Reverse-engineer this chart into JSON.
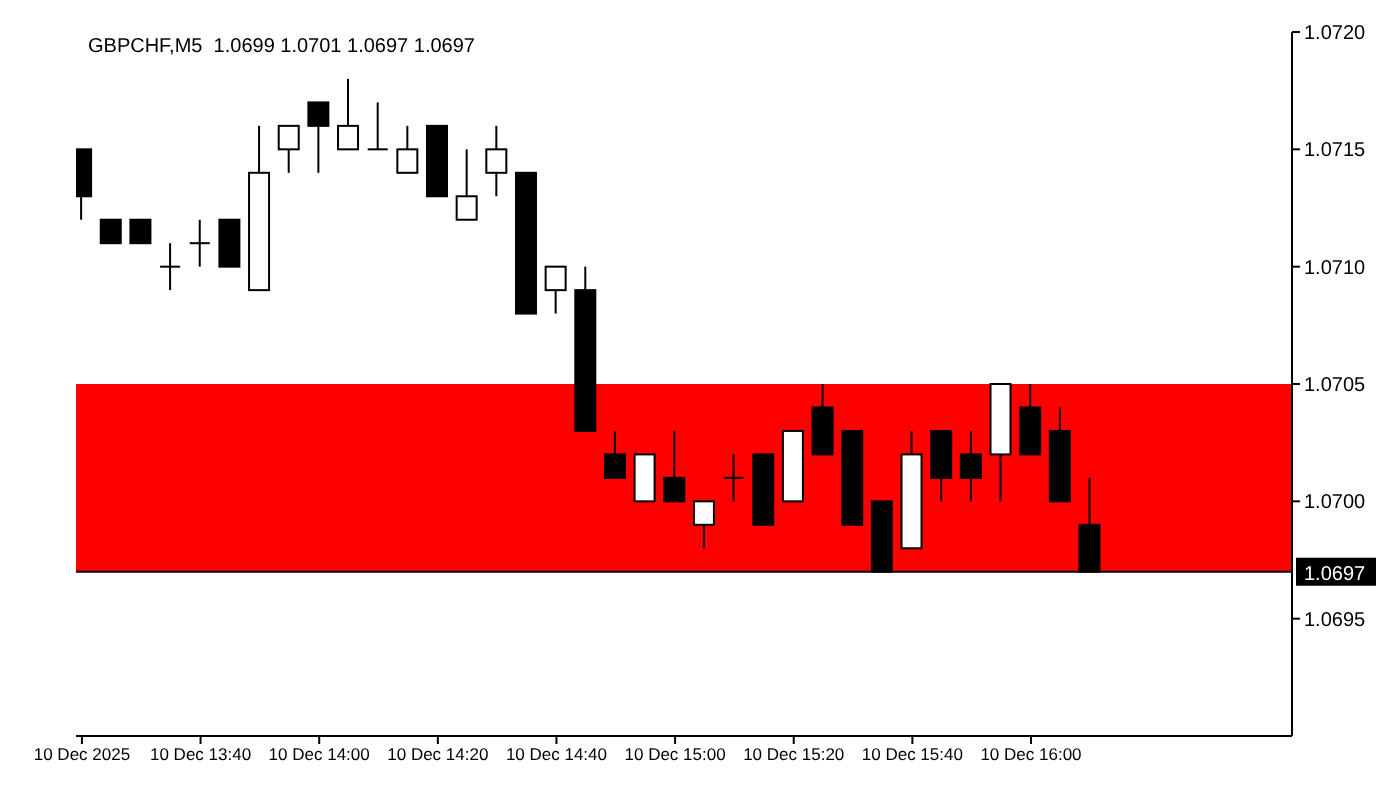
{
  "chart_data": {
    "type": "candlestick",
    "title": "GBPCHF,M5  1.0699 1.0701 1.0697 1.0697",
    "color": "#000000",
    "x": [
      "2025-12-10T13:20",
      "2025-12-10T13:25",
      "2025-12-10T13:30",
      "2025-12-10T13:35",
      "2025-12-10T13:40",
      "2025-12-10T13:45",
      "2025-12-10T13:50",
      "2025-12-10T13:55",
      "2025-12-10T14:00",
      "2025-12-10T14:05",
      "2025-12-10T14:10",
      "2025-12-10T14:15",
      "2025-12-10T14:20",
      "2025-12-10T14:25",
      "2025-12-10T14:30",
      "2025-12-10T14:35",
      "2025-12-10T14:40",
      "2025-12-10T14:45",
      "2025-12-10T14:50",
      "2025-12-10T14:55",
      "2025-12-10T15:00",
      "2025-12-10T15:05",
      "2025-12-10T15:10",
      "2025-12-10T15:15",
      "2025-12-10T15:20",
      "2025-12-10T15:25",
      "2025-12-10T15:30",
      "2025-12-10T15:35",
      "2025-12-10T15:40",
      "2025-12-10T15:45",
      "2025-12-10T15:50",
      "2025-12-10T15:55",
      "2025-12-10T16:00",
      "2025-12-10T16:05",
      "2025-12-10T16:10"
    ],
    "ohlc": [
      [
        1.0715,
        1.0715,
        1.0712,
        1.0713
      ],
      [
        1.0712,
        1.0712,
        1.0711,
        1.0711
      ],
      [
        1.0712,
        1.0712,
        1.0711,
        1.0711
      ],
      [
        1.071,
        1.0711,
        1.0709,
        1.071
      ],
      [
        1.0711,
        1.0712,
        1.071,
        1.0711
      ],
      [
        1.0712,
        1.0712,
        1.071,
        1.071
      ],
      [
        1.0709,
        1.0716,
        1.0709,
        1.0714
      ],
      [
        1.0715,
        1.0716,
        1.0714,
        1.0716
      ],
      [
        1.0717,
        1.0717,
        1.0714,
        1.0716
      ],
      [
        1.0715,
        1.0718,
        1.0715,
        1.0716
      ],
      [
        1.0715,
        1.0717,
        1.0715,
        1.0715
      ],
      [
        1.0714,
        1.0716,
        1.0714,
        1.0715
      ],
      [
        1.0716,
        1.0716,
        1.0713,
        1.0713
      ],
      [
        1.0712,
        1.0715,
        1.0712,
        1.0713
      ],
      [
        1.0714,
        1.0716,
        1.0713,
        1.0715
      ],
      [
        1.0714,
        1.0714,
        1.0708,
        1.0708
      ],
      [
        1.0709,
        1.071,
        1.0708,
        1.071
      ],
      [
        1.0709,
        1.071,
        1.0703,
        1.0703
      ],
      [
        1.0702,
        1.0703,
        1.0701,
        1.0701
      ],
      [
        1.07,
        1.0702,
        1.07,
        1.0702
      ],
      [
        1.0701,
        1.0703,
        1.07,
        1.07
      ],
      [
        1.0699,
        1.07,
        1.0698,
        1.07
      ],
      [
        1.0701,
        1.0702,
        1.07,
        1.0701
      ],
      [
        1.0702,
        1.0702,
        1.0699,
        1.0699
      ],
      [
        1.07,
        1.0703,
        1.07,
        1.0703
      ],
      [
        1.0704,
        1.0705,
        1.0702,
        1.0702
      ],
      [
        1.0703,
        1.0703,
        1.0699,
        1.0699
      ],
      [
        1.07,
        1.07,
        1.0697,
        1.0697
      ],
      [
        1.0698,
        1.0703,
        1.0698,
        1.0702
      ],
      [
        1.0703,
        1.0703,
        1.07,
        1.0701
      ],
      [
        1.0702,
        1.0703,
        1.07,
        1.0701
      ],
      [
        1.0702,
        1.0705,
        1.07,
        1.0705
      ],
      [
        1.0704,
        1.0705,
        1.0702,
        1.0702
      ],
      [
        1.0703,
        1.0704,
        1.07,
        1.07
      ],
      [
        1.0699,
        1.0701,
        1.0697,
        1.0697
      ]
    ],
    "xlim": [
      "2025-12-10T13:19",
      "2025-12-10T16:44"
    ],
    "xticks": [
      {
        "value": "2025-12-10T13:20",
        "label": "10 Dec 2025"
      },
      {
        "value": "2025-12-10T13:40",
        "label": "10 Dec 13:40"
      },
      {
        "value": "2025-12-10T14:00",
        "label": "10 Dec 14:00"
      },
      {
        "value": "2025-12-10T14:20",
        "label": "10 Dec 14:20"
      },
      {
        "value": "2025-12-10T14:40",
        "label": "10 Dec 14:40"
      },
      {
        "value": "2025-12-10T15:00",
        "label": "10 Dec 15:00"
      },
      {
        "value": "2025-12-10T15:20",
        "label": "10 Dec 15:20"
      },
      {
        "value": "2025-12-10T15:40",
        "label": "10 Dec 15:40"
      },
      {
        "value": "2025-12-10T16:00",
        "label": "10 Dec 16:00"
      }
    ],
    "ylim": [
      1.069,
      1.072
    ],
    "yticks": [
      {
        "value": 1.0695,
        "label": "1.0695"
      },
      {
        "value": 1.07,
        "label": "1.0700"
      },
      {
        "value": 1.0705,
        "label": "1.0705"
      },
      {
        "value": 1.071,
        "label": "1.0710"
      },
      {
        "value": 1.0715,
        "label": "1.0715"
      },
      {
        "value": 1.072,
        "label": "1.0720"
      }
    ],
    "bands": [
      {
        "axis": "y",
        "from": 1.0697,
        "to": 1.0705,
        "color": "#ff0000"
      }
    ],
    "ref_lines": [
      {
        "axis": "y",
        "value": 1.0697,
        "label": "1.0697",
        "color": "#000000"
      }
    ],
    "grid": false,
    "legend": false
  }
}
